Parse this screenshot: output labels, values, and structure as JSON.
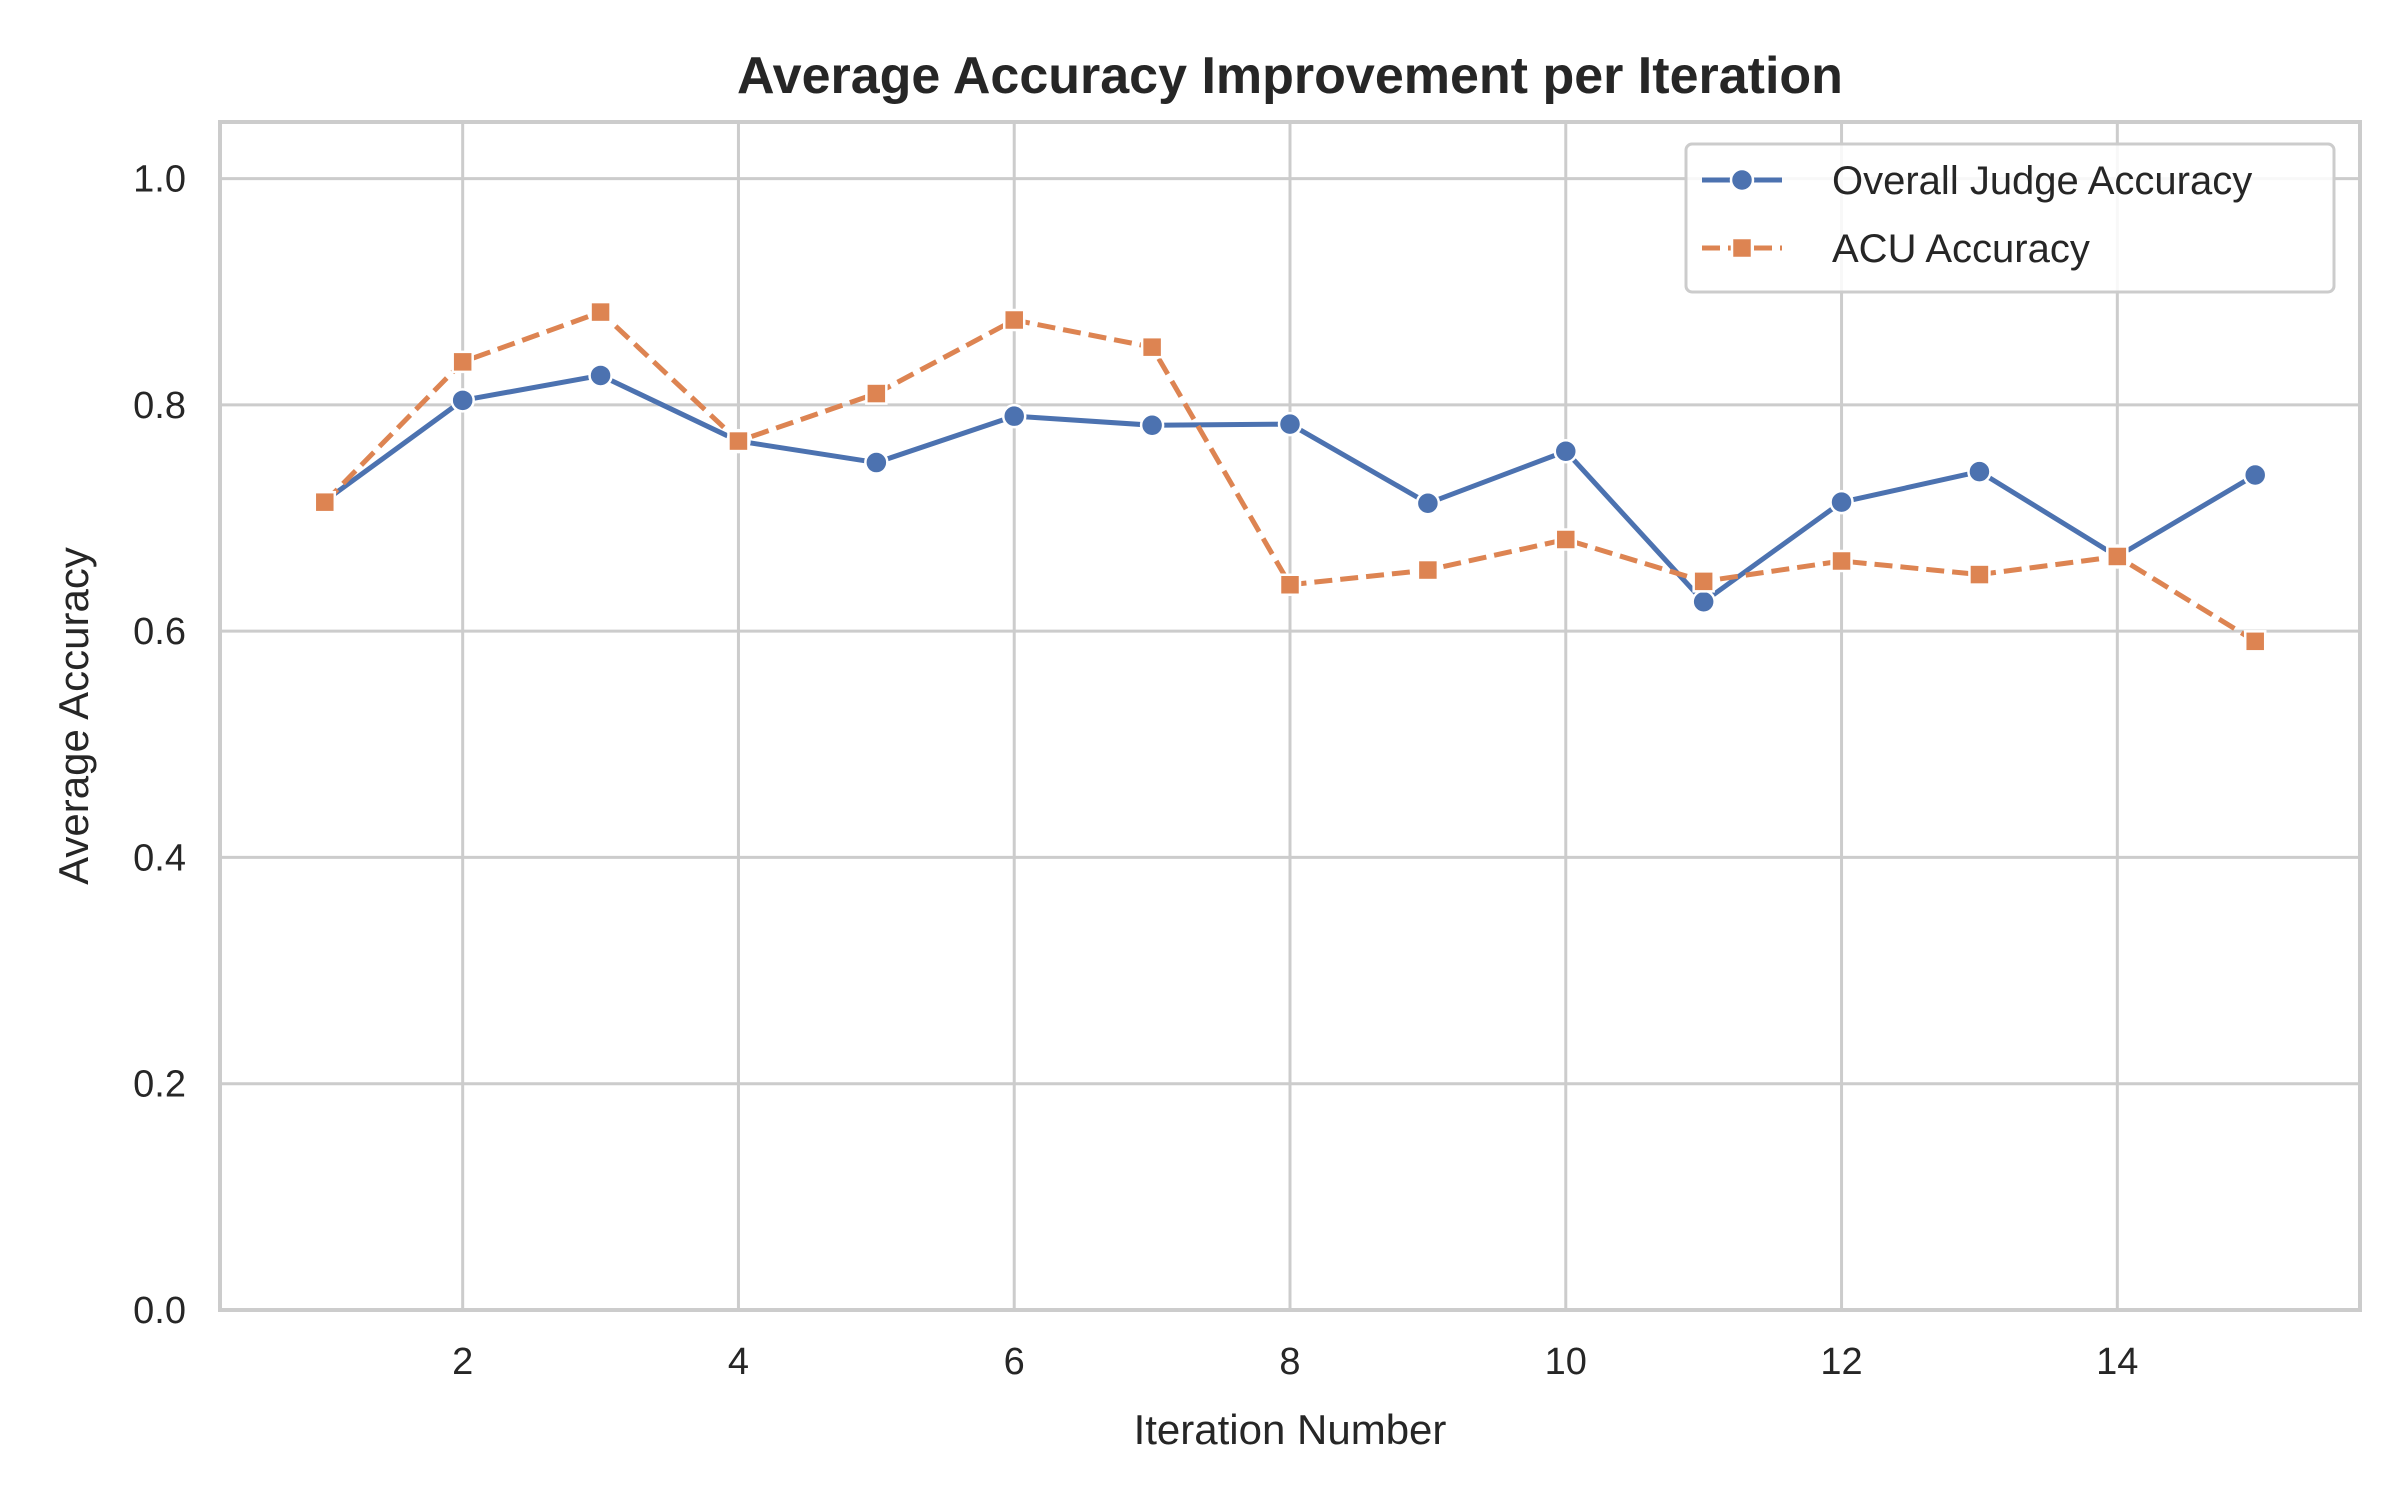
{
  "chart_data": {
    "type": "line",
    "title": "Average Accuracy Improvement per Iteration",
    "xlabel": "Iteration Number",
    "ylabel": "Average Accuracy",
    "x": [
      1,
      2,
      3,
      4,
      5,
      6,
      7,
      8,
      9,
      10,
      11,
      12,
      13,
      14,
      15
    ],
    "xlim": [
      0.24,
      15.76
    ],
    "ylim": [
      0.0,
      1.05
    ],
    "x_ticks": [
      "2",
      "4",
      "6",
      "8",
      "10",
      "12",
      "14"
    ],
    "y_ticks": [
      "0.0",
      "0.2",
      "0.4",
      "0.6",
      "0.8",
      "1.0"
    ],
    "grid": true,
    "legend_position": "top-right",
    "series": [
      {
        "name": "Overall Judge Accuracy",
        "color": "#4c72b0",
        "marker": "circle",
        "line_style": "solid",
        "values": [
          0.715,
          0.804,
          0.826,
          0.768,
          0.749,
          0.79,
          0.782,
          0.783,
          0.713,
          0.759,
          0.626,
          0.714,
          0.741,
          0.666,
          0.738
        ]
      },
      {
        "name": "ACU Accuracy",
        "color": "#dd8452",
        "marker": "square",
        "line_style": "dashed",
        "values": [
          0.714,
          0.838,
          0.882,
          0.768,
          0.81,
          0.875,
          0.851,
          0.641,
          0.654,
          0.681,
          0.644,
          0.662,
          0.65,
          0.666,
          0.591
        ]
      }
    ]
  }
}
